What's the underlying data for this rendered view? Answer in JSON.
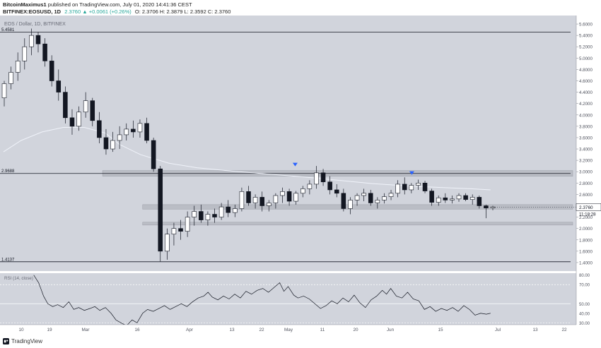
{
  "header": {
    "author": "BitcoinMaximus1",
    "published_text": "published on TradingView.com, July 01, 2020 14:41:36 CEST",
    "symbol": "BITFINEX:EOSUSD, 1D",
    "change": "2.3760 ▲ +0.0061 (+0.26%)",
    "ohlc": "O: 2.3706  H: 2.3879  L: 2.3592  C: 2.3760"
  },
  "chart_title": "EOS / Dollar, 1D, BITFINEX",
  "colors": {
    "pane": "#d1d4dc",
    "bull": "#ffffff",
    "bear": "#131722",
    "marker": "#2962ff",
    "ma": "#f0f3fa",
    "zone": "#b2b5be"
  },
  "footer": {
    "logo_text": "TradingView",
    "logo_icon": "tradingview-logo-icon"
  },
  "chart_data": {
    "type": "candlestick",
    "title": "EOS / Dollar, 1D, BITFINEX",
    "price_axis": {
      "ticks": [
        "5.6000",
        "5.4000",
        "5.2000",
        "5.0000",
        "4.8000",
        "4.6000",
        "4.4000",
        "4.2000",
        "4.0000",
        "3.8000",
        "3.6000",
        "3.4000",
        "3.2000",
        "3.0000",
        "2.8000",
        "2.6000",
        "2.4000",
        "2.2000",
        "2.0000",
        "1.8000",
        "1.6000",
        "1.4000"
      ],
      "tick_values": [
        5.6,
        5.4,
        5.2,
        5.0,
        4.8,
        4.6,
        4.4,
        4.2,
        4.0,
        3.8,
        3.6,
        3.4,
        3.2,
        3.0,
        2.8,
        2.6,
        2.4,
        2.2,
        2.0,
        1.8,
        1.6,
        1.4
      ],
      "ylim": [
        1.25,
        5.75
      ]
    },
    "last_price": "2.3760",
    "countdown": "11:18:28",
    "horizontal_lines": [
      {
        "label": "5.4581",
        "value": 5.4581
      },
      {
        "label": "2.9688",
        "value": 2.9688
      },
      {
        "label": "1.4137",
        "value": 1.4137
      }
    ],
    "zones": [
      {
        "from": 2.92,
        "to": 3.02,
        "x_start": 146
      },
      {
        "from": 2.34,
        "to": 2.42,
        "x_start": 203
      },
      {
        "from": 2.06,
        "to": 2.11,
        "x_start": 203
      }
    ],
    "time_axis": [
      "10",
      "19",
      "Mar",
      "16",
      "Apr",
      "13",
      "22",
      "May",
      "11",
      "20",
      "Jun",
      "15",
      "Jul",
      "13",
      "22"
    ],
    "time_axis_x": [
      30,
      70,
      121,
      194,
      268,
      328,
      370,
      408,
      456,
      503,
      552,
      623,
      704,
      757,
      798
    ],
    "x_range": [
      0,
      820
    ],
    "ohlc": [
      [
        4.3,
        4.6,
        4.15,
        4.55
      ],
      [
        4.55,
        4.85,
        4.45,
        4.75
      ],
      [
        4.75,
        5.1,
        4.6,
        4.95
      ],
      [
        4.95,
        5.35,
        4.8,
        5.2
      ],
      [
        5.2,
        5.52,
        5.05,
        5.4
      ],
      [
        5.4,
        5.46,
        5.1,
        5.25
      ],
      [
        5.25,
        5.35,
        4.85,
        4.95
      ],
      [
        4.95,
        5.05,
        4.5,
        4.6
      ],
      [
        4.6,
        4.8,
        4.25,
        4.4
      ],
      [
        4.4,
        4.5,
        3.85,
        3.95
      ],
      [
        3.95,
        4.1,
        3.65,
        3.8
      ],
      [
        3.8,
        4.15,
        3.72,
        4.05
      ],
      [
        4.05,
        4.4,
        3.95,
        4.25
      ],
      [
        4.25,
        4.3,
        3.8,
        3.9
      ],
      [
        3.9,
        4.05,
        3.5,
        3.6
      ],
      [
        3.6,
        3.75,
        3.3,
        3.4
      ],
      [
        3.4,
        3.7,
        3.35,
        3.55
      ],
      [
        3.55,
        3.8,
        3.4,
        3.65
      ],
      [
        3.65,
        3.85,
        3.55,
        3.75
      ],
      [
        3.75,
        3.9,
        3.6,
        3.7
      ],
      [
        3.7,
        3.92,
        3.6,
        3.85
      ],
      [
        3.85,
        3.95,
        3.5,
        3.55
      ],
      [
        3.55,
        3.6,
        3.0,
        3.05
      ],
      [
        3.05,
        3.1,
        1.42,
        1.6
      ],
      [
        1.6,
        2.0,
        1.45,
        1.9
      ],
      [
        1.9,
        2.1,
        1.7,
        2.0
      ],
      [
        2.0,
        2.15,
        1.8,
        1.95
      ],
      [
        1.95,
        2.3,
        1.85,
        2.2
      ],
      [
        2.2,
        2.4,
        2.05,
        2.3
      ],
      [
        2.3,
        2.42,
        2.1,
        2.15
      ],
      [
        2.15,
        2.3,
        2.05,
        2.25
      ],
      [
        2.25,
        2.35,
        2.1,
        2.2
      ],
      [
        2.2,
        2.45,
        2.15,
        2.38
      ],
      [
        2.38,
        2.5,
        2.2,
        2.28
      ],
      [
        2.28,
        2.42,
        2.2,
        2.35
      ],
      [
        2.35,
        2.72,
        2.3,
        2.65
      ],
      [
        2.65,
        2.75,
        2.4,
        2.45
      ],
      [
        2.45,
        2.6,
        2.35,
        2.55
      ],
      [
        2.55,
        2.65,
        2.3,
        2.4
      ],
      [
        2.4,
        2.5,
        2.3,
        2.45
      ],
      [
        2.45,
        2.62,
        2.35,
        2.58
      ],
      [
        2.58,
        2.72,
        2.45,
        2.65
      ],
      [
        2.65,
        2.7,
        2.4,
        2.48
      ],
      [
        2.48,
        2.66,
        2.42,
        2.62
      ],
      [
        2.62,
        2.75,
        2.55,
        2.7
      ],
      [
        2.7,
        2.85,
        2.6,
        2.78
      ],
      [
        2.78,
        3.1,
        2.7,
        2.98
      ],
      [
        2.98,
        3.05,
        2.75,
        2.82
      ],
      [
        2.82,
        2.92,
        2.6,
        2.68
      ],
      [
        2.68,
        2.78,
        2.55,
        2.62
      ],
      [
        2.62,
        2.7,
        2.3,
        2.35
      ],
      [
        2.35,
        2.55,
        2.25,
        2.5
      ],
      [
        2.5,
        2.62,
        2.4,
        2.58
      ],
      [
        2.58,
        2.7,
        2.48,
        2.62
      ],
      [
        2.62,
        2.68,
        2.4,
        2.45
      ],
      [
        2.45,
        2.55,
        2.35,
        2.5
      ],
      [
        2.5,
        2.62,
        2.44,
        2.56
      ],
      [
        2.56,
        2.68,
        2.5,
        2.62
      ],
      [
        2.62,
        2.85,
        2.55,
        2.78
      ],
      [
        2.78,
        2.9,
        2.6,
        2.68
      ],
      [
        2.68,
        2.8,
        2.62,
        2.76
      ],
      [
        2.76,
        2.86,
        2.68,
        2.8
      ],
      [
        2.8,
        2.84,
        2.62,
        2.66
      ],
      [
        2.66,
        2.7,
        2.4,
        2.46
      ],
      [
        2.46,
        2.58,
        2.4,
        2.54
      ],
      [
        2.54,
        2.62,
        2.45,
        2.5
      ],
      [
        2.5,
        2.58,
        2.44,
        2.52
      ],
      [
        2.52,
        2.62,
        2.47,
        2.58
      ],
      [
        2.58,
        2.62,
        2.48,
        2.51
      ],
      [
        2.51,
        2.6,
        2.42,
        2.55
      ],
      [
        2.55,
        2.58,
        2.35,
        2.4
      ],
      [
        2.4,
        2.42,
        2.18,
        2.36
      ],
      [
        2.36,
        2.4,
        2.32,
        2.38
      ]
    ],
    "ma_line": [
      [
        5,
        3.35
      ],
      [
        30,
        3.55
      ],
      [
        60,
        3.7
      ],
      [
        90,
        3.78
      ],
      [
        120,
        3.78
      ],
      [
        150,
        3.68
      ],
      [
        170,
        3.48
      ],
      [
        200,
        3.3
      ],
      [
        240,
        3.15
      ],
      [
        280,
        3.07
      ],
      [
        330,
        3.01
      ],
      [
        380,
        2.96
      ],
      [
        430,
        2.91
      ],
      [
        480,
        2.85
      ],
      [
        530,
        2.79
      ],
      [
        580,
        2.75
      ],
      [
        630,
        2.72
      ],
      [
        670,
        2.7
      ],
      [
        698,
        2.68
      ]
    ],
    "markers": [
      {
        "x": 420,
        "value": 3.12
      },
      {
        "x": 586,
        "value": 2.97
      }
    ],
    "rsi": {
      "label": "RSI (14, close)",
      "ticks": [
        "80.00",
        "70.00",
        "50.00",
        "40.00",
        "30.00"
      ],
      "tick_values": [
        80,
        70,
        50,
        40,
        30
      ],
      "ylim": [
        28,
        82
      ],
      "bands": [
        70,
        50,
        30
      ],
      "values": [
        [
          48,
          80
        ],
        [
          55,
          72
        ],
        [
          62,
          58
        ],
        [
          68,
          50
        ],
        [
          75,
          47
        ],
        [
          82,
          49
        ],
        [
          90,
          46
        ],
        [
          98,
          52
        ],
        [
          105,
          44
        ],
        [
          112,
          46
        ],
        [
          120,
          43
        ],
        [
          128,
          45
        ],
        [
          135,
          47
        ],
        [
          142,
          43
        ],
        [
          150,
          46
        ],
        [
          158,
          40
        ],
        [
          165,
          33
        ],
        [
          172,
          30
        ],
        [
          180,
          27
        ],
        [
          188,
          33
        ],
        [
          195,
          30
        ],
        [
          203,
          40
        ],
        [
          210,
          44
        ],
        [
          218,
          42
        ],
        [
          226,
          45
        ],
        [
          234,
          48
        ],
        [
          242,
          44
        ],
        [
          250,
          47
        ],
        [
          258,
          50
        ],
        [
          266,
          47
        ],
        [
          274,
          52
        ],
        [
          282,
          56
        ],
        [
          290,
          58
        ],
        [
          296,
          62
        ],
        [
          302,
          57
        ],
        [
          310,
          54
        ],
        [
          318,
          58
        ],
        [
          326,
          55
        ],
        [
          334,
          60
        ],
        [
          342,
          56
        ],
        [
          350,
          63
        ],
        [
          358,
          60
        ],
        [
          366,
          64
        ],
        [
          374,
          66
        ],
        [
          382,
          62
        ],
        [
          390,
          67
        ],
        [
          398,
          72
        ],
        [
          404,
          63
        ],
        [
          410,
          68
        ],
        [
          418,
          59
        ],
        [
          424,
          56
        ],
        [
          432,
          58
        ],
        [
          440,
          55
        ],
        [
          448,
          50
        ],
        [
          456,
          45
        ],
        [
          464,
          48
        ],
        [
          472,
          53
        ],
        [
          480,
          50
        ],
        [
          488,
          56
        ],
        [
          496,
          52
        ],
        [
          504,
          59
        ],
        [
          512,
          51
        ],
        [
          520,
          46
        ],
        [
          528,
          54
        ],
        [
          536,
          58
        ],
        [
          544,
          64
        ],
        [
          550,
          60
        ],
        [
          556,
          66
        ],
        [
          564,
          58
        ],
        [
          572,
          56
        ],
        [
          580,
          62
        ],
        [
          588,
          55
        ],
        [
          596,
          53
        ],
        [
          604,
          44
        ],
        [
          612,
          47
        ],
        [
          620,
          42
        ],
        [
          628,
          45
        ],
        [
          636,
          43
        ],
        [
          644,
          46
        ],
        [
          652,
          42
        ],
        [
          660,
          48
        ],
        [
          668,
          44
        ],
        [
          676,
          38
        ],
        [
          684,
          40
        ],
        [
          692,
          39
        ],
        [
          698,
          40
        ]
      ]
    }
  }
}
